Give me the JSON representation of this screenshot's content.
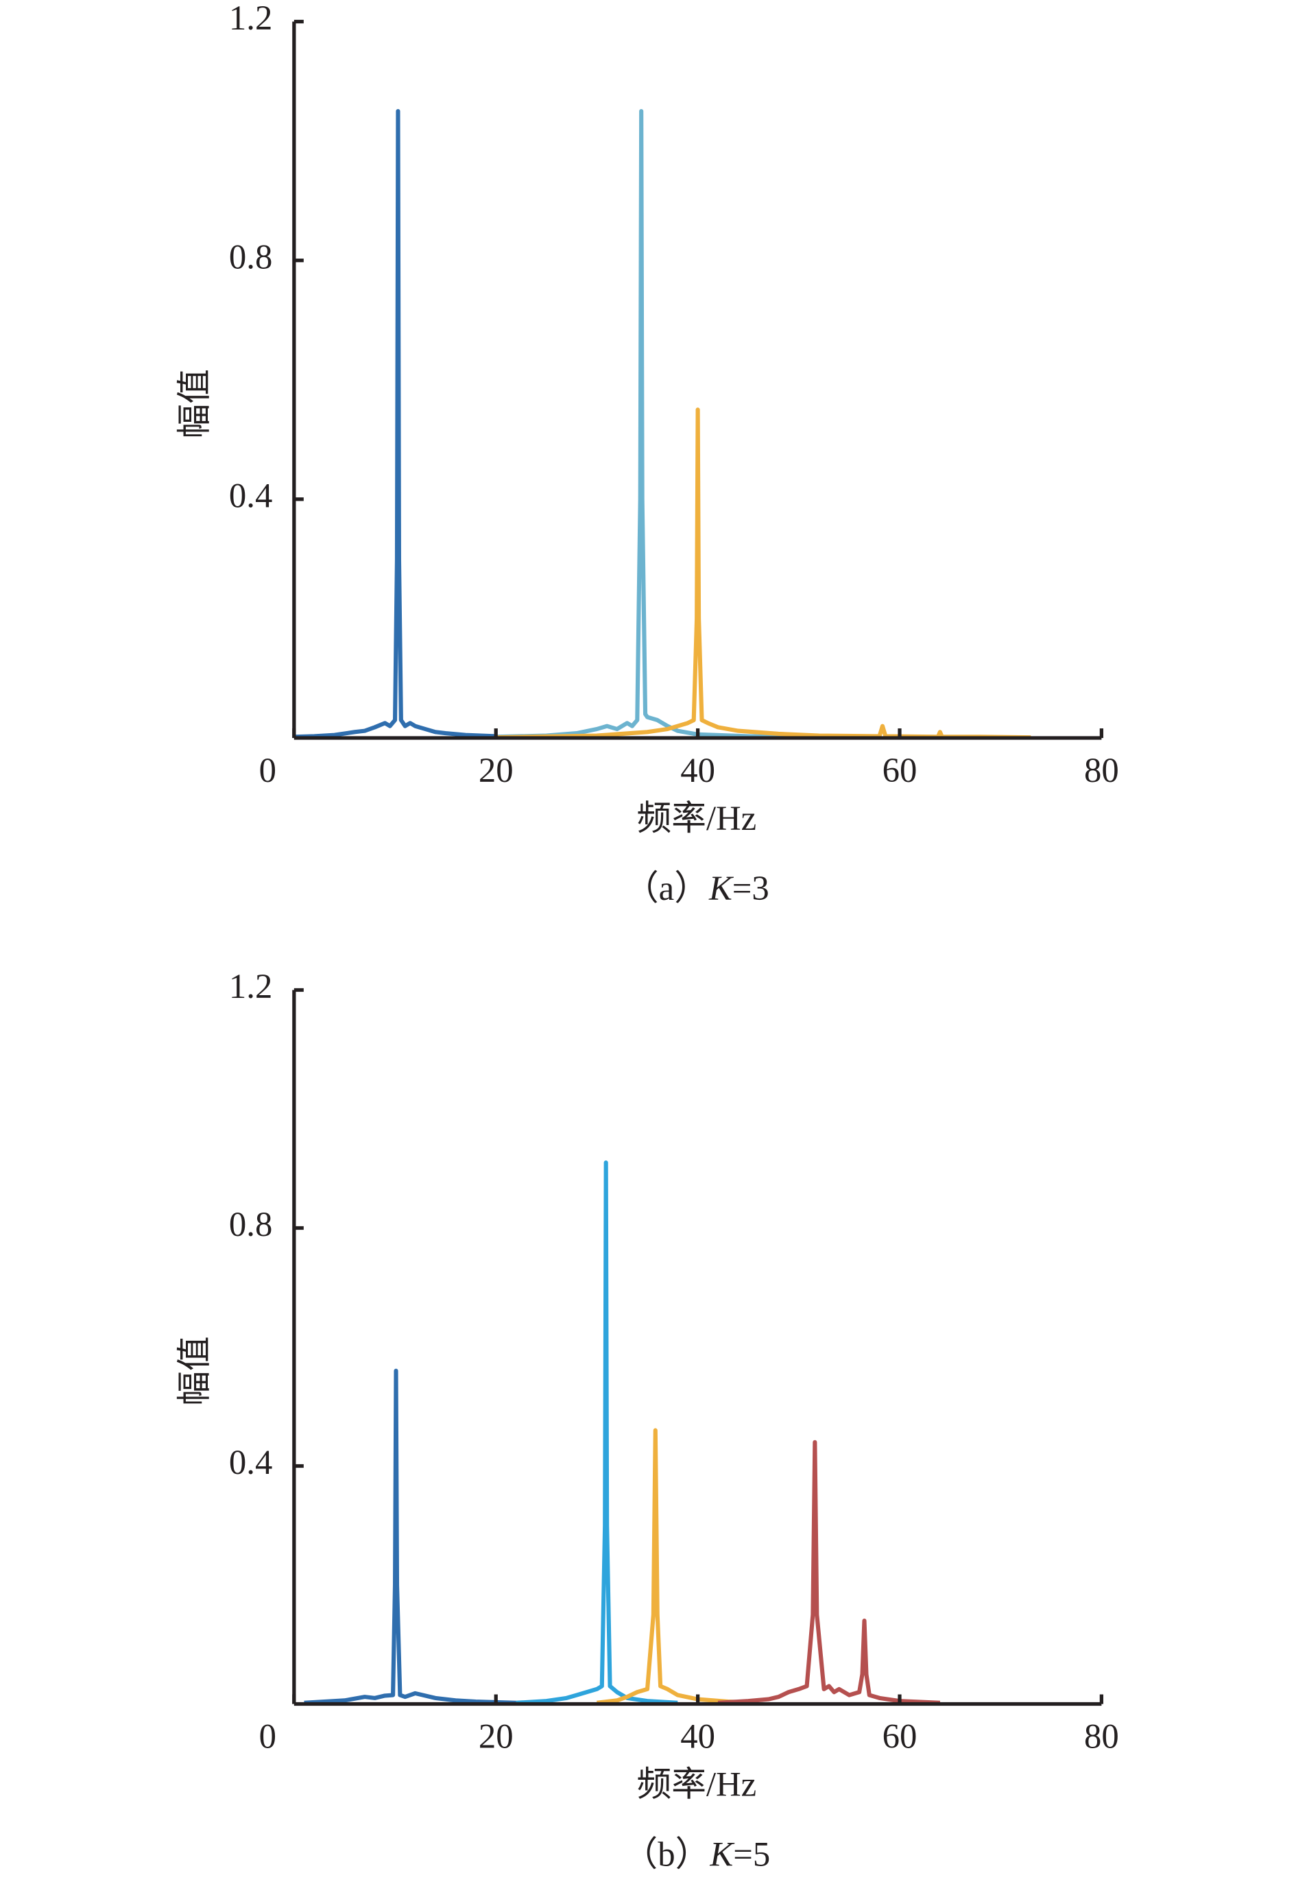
{
  "chart_data": [
    {
      "type": "line",
      "caption": [
        "（a）",
        "K",
        "=3"
      ],
      "xlabel": "频率/Hz",
      "ylabel": "幅值",
      "xlim": [
        0,
        80
      ],
      "xticks": [
        0,
        20,
        40,
        60,
        80
      ],
      "ylim": [
        0,
        1.2
      ],
      "yticks": [
        0.4,
        0.8,
        1.2
      ],
      "series": [
        {
          "color": "#2f6eae",
          "x": [
            0,
            2,
            4,
            6,
            7,
            8,
            9,
            9.5,
            10,
            10.2,
            10.3,
            10.4,
            10.6,
            11,
            11.5,
            12,
            13,
            14,
            15,
            17,
            20
          ],
          "values": [
            0.002,
            0.003,
            0.005,
            0.01,
            0.012,
            0.018,
            0.025,
            0.02,
            0.03,
            0.3,
            1.05,
            0.3,
            0.03,
            0.02,
            0.025,
            0.02,
            0.015,
            0.01,
            0.008,
            0.005,
            0.003
          ]
        },
        {
          "color": "#6cb3cf",
          "x": [
            20,
            25,
            28,
            30,
            31,
            32,
            33,
            33.5,
            34,
            34.3,
            34.4,
            34.5,
            34.8,
            35,
            36,
            37,
            38,
            40,
            45,
            50
          ],
          "values": [
            0.002,
            0.004,
            0.008,
            0.015,
            0.02,
            0.015,
            0.025,
            0.02,
            0.03,
            0.4,
            1.05,
            0.4,
            0.04,
            0.035,
            0.03,
            0.02,
            0.012,
            0.006,
            0.003,
            0.001
          ]
        },
        {
          "color": "#efb03d",
          "x": [
            20,
            30,
            35,
            37,
            38,
            39,
            39.6,
            39.9,
            40,
            40.1,
            40.4,
            41,
            42,
            44,
            48,
            52,
            58,
            58.3,
            58.6,
            63.8,
            64,
            64.2,
            68,
            73
          ],
          "values": [
            0.001,
            0.004,
            0.01,
            0.015,
            0.02,
            0.025,
            0.03,
            0.2,
            0.55,
            0.2,
            0.03,
            0.025,
            0.018,
            0.012,
            0.007,
            0.004,
            0.003,
            0.02,
            0.003,
            0.002,
            0.01,
            0.002,
            0.002,
            0.001
          ]
        }
      ]
    },
    {
      "type": "line",
      "caption": [
        "（b）",
        "K",
        "=5"
      ],
      "xlabel": "频率/Hz",
      "ylabel": "幅值",
      "xlim": [
        0,
        80
      ],
      "xticks": [
        0,
        20,
        40,
        60,
        80
      ],
      "ylim": [
        0,
        1.2
      ],
      "yticks": [
        0.4,
        0.8,
        1.2
      ],
      "series": [
        {
          "color": "#2f6eae",
          "x": [
            1,
            3,
            5,
            7,
            8,
            9,
            9.8,
            10,
            10.1,
            10.2,
            10.5,
            11,
            12,
            14,
            16,
            18,
            22
          ],
          "values": [
            0.002,
            0.004,
            0.006,
            0.012,
            0.01,
            0.014,
            0.015,
            0.2,
            0.56,
            0.2,
            0.015,
            0.012,
            0.018,
            0.01,
            0.006,
            0.004,
            0.002
          ]
        },
        {
          "color": "#2ea4dc",
          "x": [
            22,
            25,
            27,
            28,
            29,
            30,
            30.5,
            30.8,
            30.9,
            31,
            31.3,
            32,
            33,
            35,
            38
          ],
          "values": [
            0.002,
            0.005,
            0.01,
            0.015,
            0.02,
            0.025,
            0.03,
            0.3,
            0.91,
            0.3,
            0.03,
            0.02,
            0.01,
            0.005,
            0.002
          ]
        },
        {
          "color": "#efb03d",
          "x": [
            30,
            32,
            33,
            34,
            35,
            35.6,
            35.8,
            36,
            36.3,
            37,
            38,
            40,
            43,
            46
          ],
          "values": [
            0.002,
            0.006,
            0.012,
            0.02,
            0.025,
            0.15,
            0.46,
            0.15,
            0.03,
            0.025,
            0.015,
            0.008,
            0.004,
            0.002
          ]
        },
        {
          "color": "#b5504f",
          "x": [
            42,
            45,
            47,
            48,
            49,
            50,
            50.8,
            51.4,
            51.6,
            51.8,
            52.5,
            53,
            53.5,
            54,
            55,
            56,
            56.3,
            56.5,
            56.7,
            57,
            58,
            60,
            64
          ],
          "values": [
            0.002,
            0.005,
            0.008,
            0.012,
            0.02,
            0.025,
            0.03,
            0.15,
            0.44,
            0.15,
            0.025,
            0.03,
            0.02,
            0.025,
            0.015,
            0.02,
            0.05,
            0.14,
            0.05,
            0.015,
            0.01,
            0.005,
            0.002
          ]
        }
      ]
    }
  ]
}
